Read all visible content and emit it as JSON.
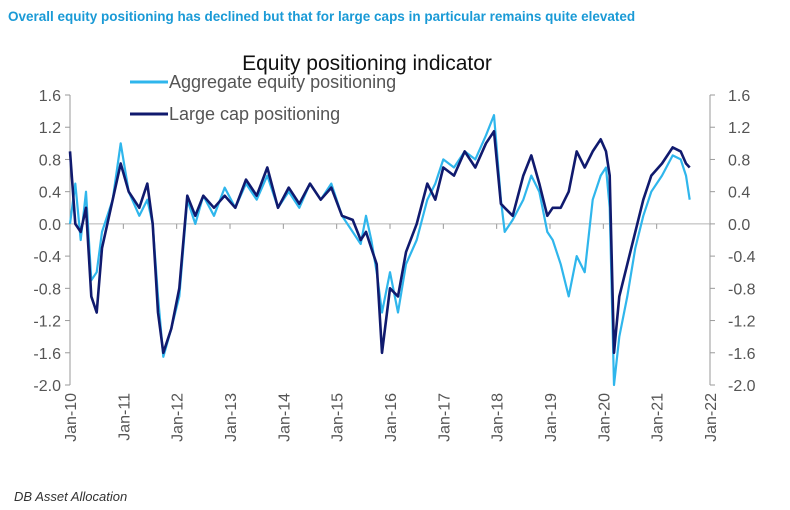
{
  "headline": "Overall equity positioning has declined but that for large caps in particular remains quite elevated",
  "source": "DB Asset Allocation",
  "colors": {
    "headline": "#1a9ad6",
    "aggregate": "#2fb6ec",
    "large_cap": "#101a6e",
    "axis": "#9a9a9a",
    "text": "#555555"
  },
  "chart_data": {
    "type": "line",
    "title": "Equity positioning indicator",
    "xlabel": "",
    "ylabel": "",
    "ylim": [
      -2.0,
      1.6
    ],
    "y_ticks": [
      "1.6",
      "1.2",
      "0.8",
      "0.4",
      "0.0",
      "-0.4",
      "-0.8",
      "-1.2",
      "-1.6",
      "-2.0"
    ],
    "y_tick_values": [
      1.6,
      1.2,
      0.8,
      0.4,
      0.0,
      -0.4,
      -0.8,
      -1.2,
      -1.6,
      -2.0
    ],
    "xlim": [
      2010,
      2022
    ],
    "x_ticks": [
      "Jan-10",
      "Jan-11",
      "Jan-12",
      "Jan-13",
      "Jan-14",
      "Jan-15",
      "Jan-16",
      "Jan-17",
      "Jan-18",
      "Jan-19",
      "Jan-20",
      "Jan-21",
      "Jan-22"
    ],
    "x_tick_values": [
      2010,
      2011,
      2012,
      2013,
      2014,
      2015,
      2016,
      2017,
      2018,
      2019,
      2020,
      2021,
      2022
    ],
    "legend_position": "top-left",
    "series": [
      {
        "name": "Aggregate equity positioning",
        "x": [
          2010.0,
          2010.1,
          2010.2,
          2010.3,
          2010.4,
          2010.5,
          2010.6,
          2010.8,
          2010.95,
          2011.1,
          2011.3,
          2011.45,
          2011.55,
          2011.65,
          2011.75,
          2011.9,
          2012.05,
          2012.2,
          2012.35,
          2012.5,
          2012.7,
          2012.9,
          2013.1,
          2013.3,
          2013.5,
          2013.7,
          2013.9,
          2014.1,
          2014.3,
          2014.5,
          2014.7,
          2014.9,
          2015.1,
          2015.3,
          2015.45,
          2015.55,
          2015.65,
          2015.75,
          2015.85,
          2016.0,
          2016.15,
          2016.3,
          2016.5,
          2016.7,
          2016.85,
          2017.0,
          2017.2,
          2017.4,
          2017.6,
          2017.8,
          2017.95,
          2018.08,
          2018.15,
          2018.3,
          2018.5,
          2018.65,
          2018.8,
          2018.95,
          2019.05,
          2019.2,
          2019.35,
          2019.5,
          2019.65,
          2019.8,
          2019.95,
          2020.05,
          2020.12,
          2020.2,
          2020.3,
          2020.45,
          2020.6,
          2020.75,
          2020.9,
          2021.1,
          2021.3,
          2021.45,
          2021.55,
          2021.62
        ],
        "values": [
          0.0,
          0.5,
          -0.2,
          0.4,
          -0.7,
          -0.6,
          -0.1,
          0.3,
          1.0,
          0.4,
          0.1,
          0.3,
          0.0,
          -0.9,
          -1.65,
          -1.3,
          -0.9,
          0.3,
          0.0,
          0.35,
          0.1,
          0.45,
          0.2,
          0.5,
          0.3,
          0.6,
          0.2,
          0.4,
          0.2,
          0.5,
          0.3,
          0.5,
          0.1,
          -0.1,
          -0.25,
          0.1,
          -0.2,
          -0.6,
          -1.1,
          -0.6,
          -1.1,
          -0.5,
          -0.2,
          0.3,
          0.5,
          0.8,
          0.7,
          0.9,
          0.8,
          1.1,
          1.35,
          0.3,
          -0.1,
          0.05,
          0.3,
          0.6,
          0.4,
          -0.1,
          -0.2,
          -0.5,
          -0.9,
          -0.4,
          -0.6,
          0.3,
          0.6,
          0.7,
          0.2,
          -2.0,
          -1.4,
          -0.9,
          -0.3,
          0.1,
          0.4,
          0.6,
          0.85,
          0.8,
          0.6,
          0.3
        ]
      },
      {
        "name": "Large cap positioning",
        "x": [
          2010.0,
          2010.1,
          2010.2,
          2010.3,
          2010.4,
          2010.5,
          2010.6,
          2010.8,
          2010.95,
          2011.1,
          2011.3,
          2011.45,
          2011.55,
          2011.65,
          2011.75,
          2011.9,
          2012.05,
          2012.2,
          2012.35,
          2012.5,
          2012.7,
          2012.9,
          2013.1,
          2013.3,
          2013.5,
          2013.7,
          2013.9,
          2014.1,
          2014.3,
          2014.5,
          2014.7,
          2014.9,
          2015.1,
          2015.3,
          2015.45,
          2015.55,
          2015.65,
          2015.75,
          2015.85,
          2016.0,
          2016.15,
          2016.3,
          2016.5,
          2016.7,
          2016.85,
          2017.0,
          2017.2,
          2017.4,
          2017.6,
          2017.8,
          2017.95,
          2018.08,
          2018.15,
          2018.3,
          2018.5,
          2018.65,
          2018.8,
          2018.95,
          2019.05,
          2019.2,
          2019.35,
          2019.5,
          2019.65,
          2019.8,
          2019.95,
          2020.05,
          2020.12,
          2020.2,
          2020.3,
          2020.45,
          2020.6,
          2020.75,
          2020.9,
          2021.1,
          2021.3,
          2021.45,
          2021.55,
          2021.62
        ],
        "values": [
          0.9,
          0.0,
          -0.1,
          0.2,
          -0.9,
          -1.1,
          -0.3,
          0.3,
          0.75,
          0.4,
          0.2,
          0.5,
          0.0,
          -1.1,
          -1.6,
          -1.3,
          -0.8,
          0.35,
          0.1,
          0.35,
          0.2,
          0.35,
          0.2,
          0.55,
          0.35,
          0.7,
          0.2,
          0.45,
          0.25,
          0.5,
          0.3,
          0.45,
          0.1,
          0.05,
          -0.2,
          -0.1,
          -0.3,
          -0.5,
          -1.6,
          -0.8,
          -0.9,
          -0.35,
          0.0,
          0.5,
          0.3,
          0.7,
          0.6,
          0.9,
          0.7,
          1.0,
          1.15,
          0.25,
          0.2,
          0.1,
          0.6,
          0.85,
          0.5,
          0.1,
          0.2,
          0.2,
          0.4,
          0.9,
          0.7,
          0.9,
          1.05,
          0.9,
          0.6,
          -1.6,
          -0.9,
          -0.5,
          -0.1,
          0.3,
          0.6,
          0.75,
          0.95,
          0.9,
          0.75,
          0.7
        ]
      }
    ]
  }
}
